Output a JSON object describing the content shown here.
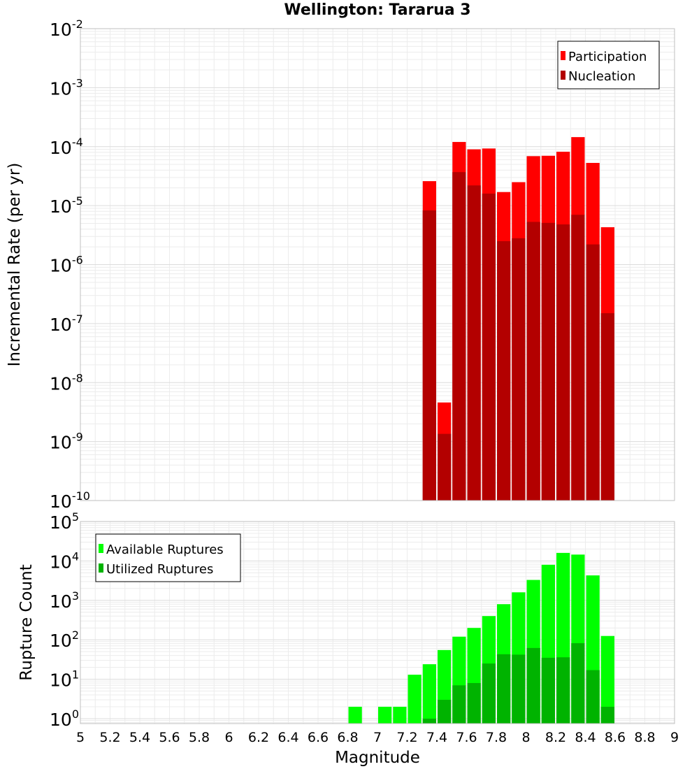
{
  "title": "Wellington: Tararua 3",
  "chart_data": [
    {
      "type": "bar",
      "panel": "top",
      "yscale": "log",
      "ylim": [
        1e-10,
        0.01
      ],
      "xlim": [
        5,
        9
      ],
      "ylabel": "Incremental Rate (per yr)",
      "y_tick_exponents": [
        -10,
        -9,
        -8,
        -7,
        -6,
        -5,
        -4,
        -3,
        -2
      ],
      "y_tick_base": "10",
      "legend_position": "top-right",
      "grid": true,
      "x": [
        7.35,
        7.45,
        7.55,
        7.65,
        7.75,
        7.85,
        7.95,
        8.05,
        8.15,
        8.25,
        8.35,
        8.45,
        8.55
      ],
      "series": [
        {
          "name": "Participation",
          "color": "#ff0000",
          "values": [
            2.6e-05,
            4.6e-09,
            0.00012,
            9e-05,
            9.3e-05,
            1.7e-05,
            2.5e-05,
            6.9e-05,
            7e-05,
            8.2e-05,
            0.000145,
            5.3e-05,
            4.3e-06
          ]
        },
        {
          "name": "Nucleation",
          "color": "#b30000",
          "values": [
            8.3e-06,
            1.35e-09,
            3.7e-05,
            2.2e-05,
            1.6e-05,
            2.5e-06,
            2.8e-06,
            5.3e-06,
            5.1e-06,
            4.8e-06,
            7e-06,
            2.2e-06,
            1.5e-07
          ]
        }
      ]
    },
    {
      "type": "bar",
      "panel": "bottom",
      "yscale": "log",
      "ylim": [
        0.75,
        100000.0
      ],
      "xlim": [
        5,
        9
      ],
      "xlabel": "Magnitude",
      "ylabel": "Rupture Count",
      "x_ticks": [
        "5",
        "5.2",
        "5.4",
        "5.6",
        "5.8",
        "6",
        "6.2",
        "6.4",
        "6.6",
        "6.8",
        "7",
        "7.2",
        "7.4",
        "7.6",
        "7.8",
        "8",
        "8.2",
        "8.4",
        "8.6",
        "8.8",
        "9"
      ],
      "y_tick_exponents": [
        0,
        1,
        2,
        3,
        4,
        5
      ],
      "y_tick_base": "10",
      "legend_position": "top-left",
      "grid": true,
      "x": [
        6.85,
        7.05,
        7.15,
        7.25,
        7.35,
        7.45,
        7.55,
        7.65,
        7.75,
        7.85,
        7.95,
        8.05,
        8.15,
        8.25,
        8.35,
        8.45,
        8.55
      ],
      "series": [
        {
          "name": "Available Ruptures",
          "color": "#00ff00",
          "values": [
            2,
            2,
            2,
            13,
            24,
            55,
            120,
            200,
            400,
            800,
            1600,
            3300,
            8000,
            16000,
            14500,
            4300,
            125
          ]
        },
        {
          "name": "Utilized Ruptures",
          "color": "#00b300",
          "values": [
            null,
            null,
            null,
            null,
            1,
            3,
            7,
            8,
            25,
            43,
            42,
            62,
            35,
            36,
            82,
            17,
            2
          ]
        }
      ]
    }
  ]
}
